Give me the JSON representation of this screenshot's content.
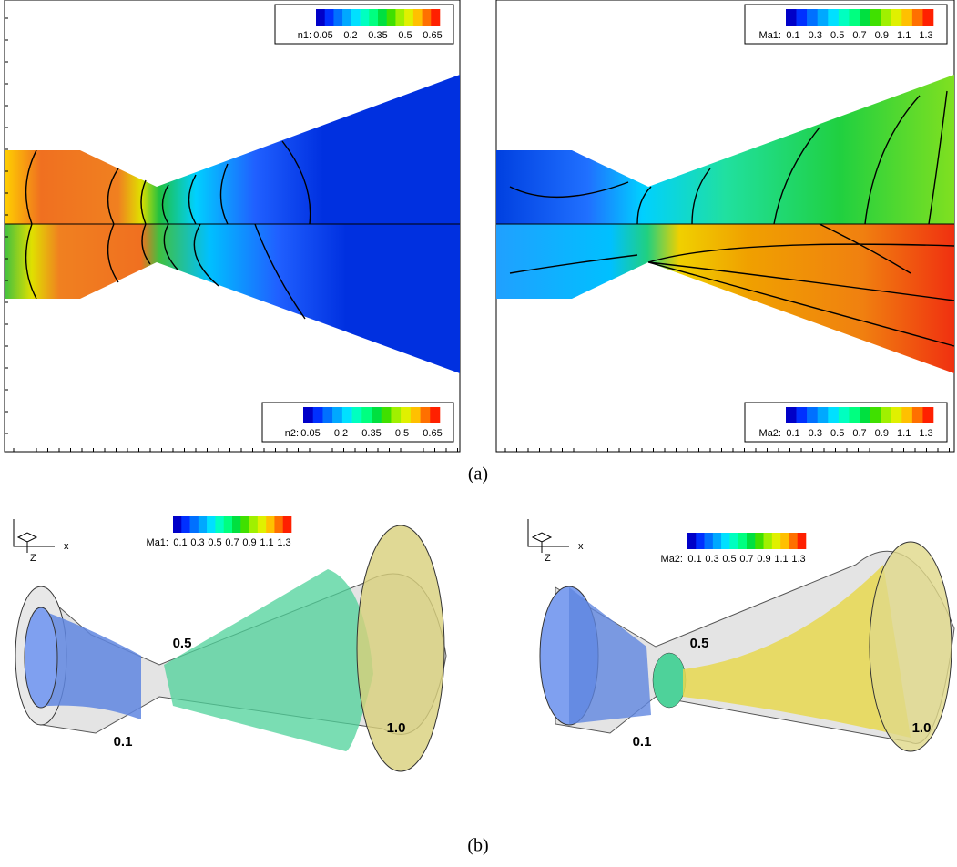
{
  "panel_a": {
    "caption": "(a)",
    "left": {
      "legend_top": {
        "label": "n1:",
        "ticks": [
          "0.05",
          "0.2",
          "0.35",
          "0.5",
          "0.65"
        ]
      },
      "legend_bottom": {
        "label": "n2:",
        "ticks": [
          "0.05",
          "0.2",
          "0.35",
          "0.5",
          "0.65"
        ]
      }
    },
    "right": {
      "legend_top": {
        "label": "Ma1:",
        "ticks": [
          "0.1",
          "0.3",
          "0.5",
          "0.7",
          "0.9",
          "1.1",
          "1.3"
        ]
      },
      "legend_bottom": {
        "label": "Ma2:",
        "ticks": [
          "0.1",
          "0.3",
          "0.5",
          "0.7",
          "0.9",
          "1.1",
          "1.3"
        ]
      }
    }
  },
  "panel_b": {
    "caption": "(b)",
    "left": {
      "axis_x": "x",
      "axis_z": "Z",
      "legend": {
        "label": "Ma1:",
        "ticks": [
          "0.1",
          "0.3",
          "0.5",
          "0.7",
          "0.9",
          "1.1",
          "1.3"
        ]
      },
      "iso_labels": [
        "0.1",
        "0.5",
        "1.0"
      ]
    },
    "right": {
      "axis_x": "x",
      "axis_z": "Z",
      "legend": {
        "label": "Ma2:",
        "ticks": [
          "0.1",
          "0.3",
          "0.5",
          "0.7",
          "0.9",
          "1.1",
          "1.3"
        ]
      },
      "iso_labels": [
        "0.1",
        "0.5",
        "1.0"
      ]
    }
  }
}
